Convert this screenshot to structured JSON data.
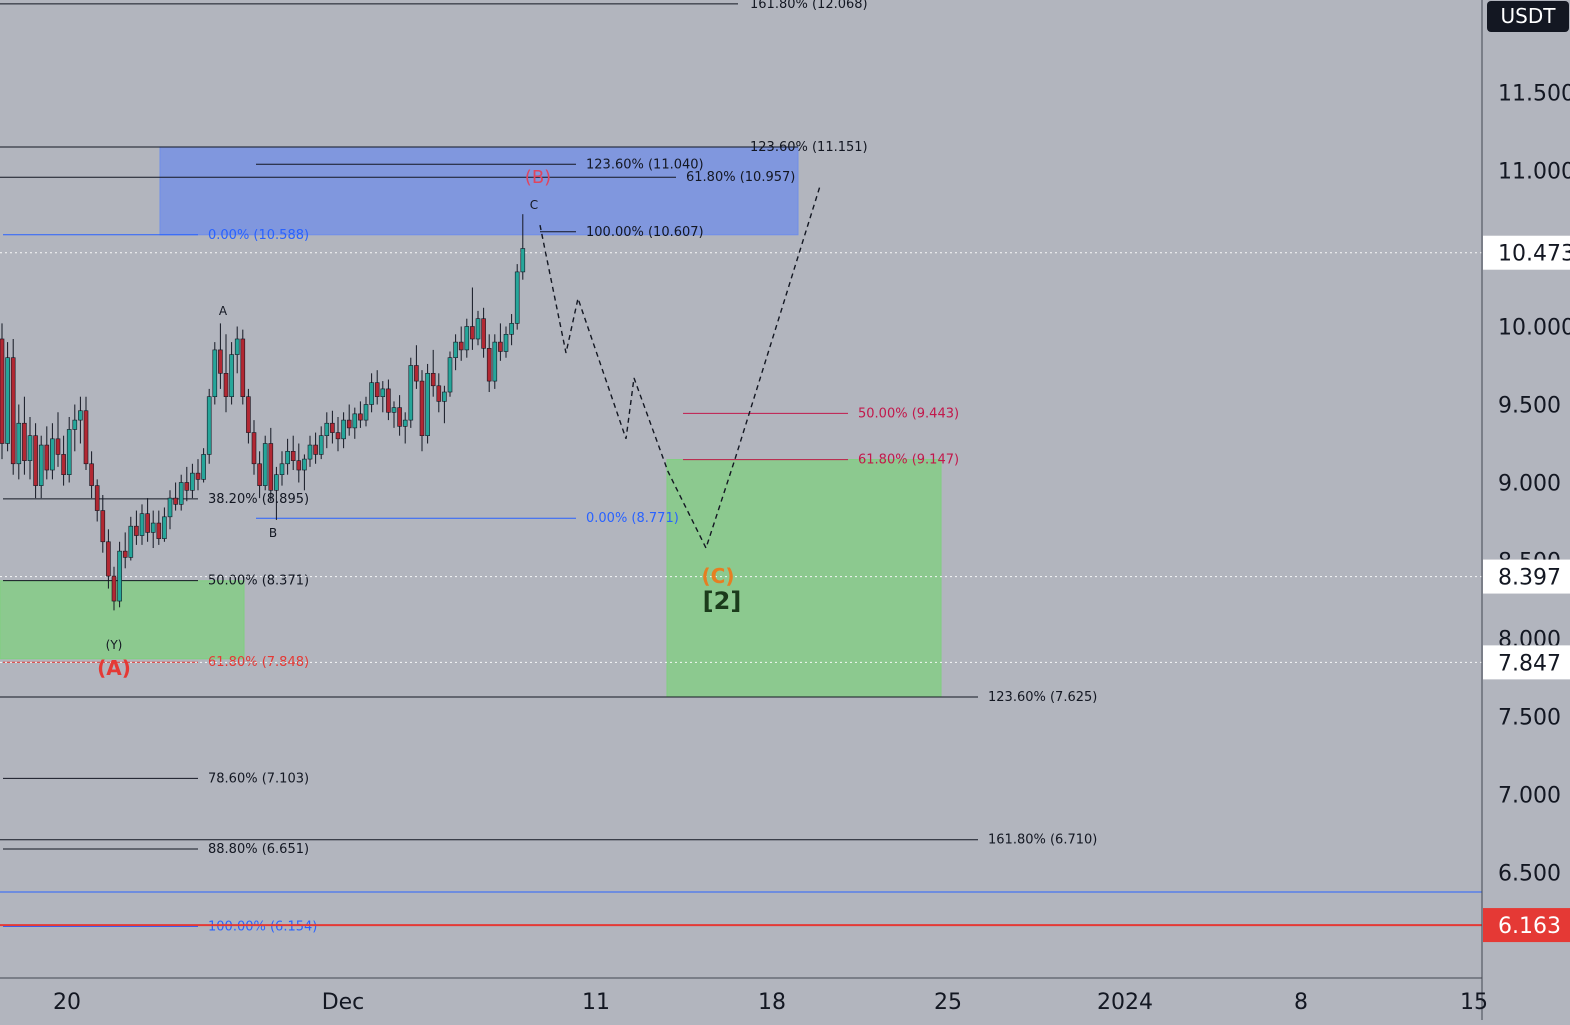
{
  "chart_data": {
    "type": "candlestick",
    "quote_currency": "USDT",
    "y_axis": {
      "ticks": [
        "11.500",
        "11.000",
        "10.000",
        "9.500",
        "9.000",
        "8.500",
        "8.000",
        "7.500",
        "7.000",
        "6.500"
      ],
      "tick_values": [
        11.5,
        11.0,
        10.0,
        9.5,
        9.0,
        8.5,
        8.0,
        7.5,
        7.0,
        6.5
      ],
      "range": [
        5.7,
        12.1
      ]
    },
    "x_axis": {
      "ticks": [
        "20",
        "Dec",
        "11",
        "18",
        "25",
        "2024",
        "8",
        "15"
      ]
    },
    "price_tags": [
      {
        "label": "10.473",
        "value": 10.473,
        "style": "light"
      },
      {
        "label": "8.397",
        "value": 8.397,
        "style": "light"
      },
      {
        "label": "7.847",
        "value": 7.847,
        "style": "light"
      },
      {
        "label": "6.163",
        "value": 6.163,
        "style": "red"
      }
    ],
    "fib_levels": [
      {
        "label": "161.80% (12.068)",
        "value": 12.068,
        "color": "#131722"
      },
      {
        "label": "123.60% (11.151)",
        "value": 11.151,
        "color": "#131722"
      },
      {
        "label": "123.60% (11.040)",
        "value": 11.04,
        "color": "#131722"
      },
      {
        "label": "61.80% (10.957)",
        "value": 10.957,
        "color": "#131722"
      },
      {
        "label": "0.00% (10.588)",
        "value": 10.588,
        "color": "#2962ff"
      },
      {
        "label": "100.00% (10.607)",
        "value": 10.607,
        "color": "#131722"
      },
      {
        "label": "50.00% (9.443)",
        "value": 9.443,
        "color": "#c2184b"
      },
      {
        "label": "61.80% (9.147)",
        "value": 9.147,
        "color": "#c2184b"
      },
      {
        "label": "38.20% (8.895)",
        "value": 8.895,
        "color": "#131722"
      },
      {
        "label": "0.00% (8.771)",
        "value": 8.771,
        "color": "#2962ff"
      },
      {
        "label": "50.00% (8.371)",
        "value": 8.371,
        "color": "#131722"
      },
      {
        "label": "61.80% (7.848)",
        "value": 7.848,
        "color": "#e53935"
      },
      {
        "label": "123.60% (7.625)",
        "value": 7.625,
        "color": "#131722"
      },
      {
        "label": "78.60% (7.103)",
        "value": 7.103,
        "color": "#131722"
      },
      {
        "label": "161.80% (6.710)",
        "value": 6.71,
        "color": "#131722"
      },
      {
        "label": "88.80% (6.651)",
        "value": 6.651,
        "color": "#131722"
      },
      {
        "label": "100.00% (6.154)",
        "value": 6.154,
        "color": "#2962ff"
      }
    ],
    "wave_labels": [
      {
        "label": "(B)",
        "color": "#e0455f"
      },
      {
        "label": "C",
        "color": "#131722"
      },
      {
        "label": "A",
        "color": "#131722"
      },
      {
        "label": "B",
        "color": "#131722"
      },
      {
        "label": "(Y)",
        "color": "#131722"
      },
      {
        "label": "(A)",
        "color": "#e53935"
      },
      {
        "label": "(C)",
        "color": "#e67e22"
      },
      {
        "label": "[2]",
        "color": "#1b3b1b"
      }
    ],
    "zones": [
      {
        "name": "resistance-zone",
        "color": "#6f8ee8",
        "range": [
          10.588,
          11.151
        ]
      },
      {
        "name": "target-zone",
        "color": "#7fd07f",
        "range": [
          7.625,
          9.147
        ]
      },
      {
        "name": "previous-zone",
        "color": "#7fd07f",
        "range": [
          7.87,
          8.37
        ]
      }
    ],
    "projection_path": [
      10.65,
      9.83,
      10.18,
      9.28,
      9.67,
      9.07,
      8.58,
      9.15,
      10.9
    ],
    "ohlc": [
      [
        9.92,
        10.02,
        9.15,
        9.25
      ],
      [
        9.25,
        9.9,
        9.2,
        9.8
      ],
      [
        9.8,
        9.92,
        9.05,
        9.12
      ],
      [
        9.12,
        9.5,
        9.02,
        9.38
      ],
      [
        9.38,
        9.55,
        9.05,
        9.14
      ],
      [
        9.14,
        9.42,
        9.02,
        9.3
      ],
      [
        9.3,
        9.38,
        8.9,
        8.98
      ],
      [
        8.98,
        9.3,
        8.9,
        9.24
      ],
      [
        9.24,
        9.36,
        9.02,
        9.08
      ],
      [
        9.08,
        9.38,
        9.02,
        9.28
      ],
      [
        9.28,
        9.45,
        9.1,
        9.18
      ],
      [
        9.18,
        9.3,
        8.98,
        9.05
      ],
      [
        9.05,
        9.42,
        9.0,
        9.34
      ],
      [
        9.34,
        9.5,
        9.2,
        9.4
      ],
      [
        9.4,
        9.55,
        9.25,
        9.46
      ],
      [
        9.46,
        9.55,
        9.08,
        9.12
      ],
      [
        9.12,
        9.2,
        8.9,
        8.98
      ],
      [
        8.98,
        9.02,
        8.75,
        8.82
      ],
      [
        8.82,
        8.92,
        8.55,
        8.62
      ],
      [
        8.62,
        8.7,
        8.32,
        8.4
      ],
      [
        8.4,
        8.46,
        8.18,
        8.24
      ],
      [
        8.24,
        8.62,
        8.2,
        8.56
      ],
      [
        8.56,
        8.68,
        8.45,
        8.52
      ],
      [
        8.52,
        8.78,
        8.5,
        8.72
      ],
      [
        8.72,
        8.82,
        8.6,
        8.66
      ],
      [
        8.66,
        8.86,
        8.6,
        8.8
      ],
      [
        8.8,
        8.9,
        8.62,
        8.68
      ],
      [
        8.68,
        8.82,
        8.58,
        8.74
      ],
      [
        8.74,
        8.82,
        8.6,
        8.64
      ],
      [
        8.64,
        8.84,
        8.62,
        8.78
      ],
      [
        8.78,
        8.95,
        8.7,
        8.9
      ],
      [
        8.9,
        9.0,
        8.82,
        8.86
      ],
      [
        8.86,
        9.05,
        8.82,
        9.0
      ],
      [
        9.0,
        9.1,
        8.88,
        8.95
      ],
      [
        8.95,
        9.12,
        8.9,
        9.06
      ],
      [
        9.06,
        9.15,
        8.95,
        9.02
      ],
      [
        9.02,
        9.22,
        9.0,
        9.18
      ],
      [
        9.18,
        9.6,
        9.12,
        9.55
      ],
      [
        9.55,
        9.9,
        9.5,
        9.85
      ],
      [
        9.85,
        10.02,
        9.6,
        9.7
      ],
      [
        9.7,
        9.95,
        9.45,
        9.55
      ],
      [
        9.55,
        9.9,
        9.5,
        9.82
      ],
      [
        9.82,
        10.0,
        9.7,
        9.92
      ],
      [
        9.92,
        9.98,
        9.5,
        9.55
      ],
      [
        9.55,
        9.6,
        9.25,
        9.32
      ],
      [
        9.32,
        9.4,
        9.05,
        9.12
      ],
      [
        9.12,
        9.2,
        8.9,
        8.98
      ],
      [
        8.98,
        9.3,
        8.95,
        9.25
      ],
      [
        9.25,
        9.35,
        8.88,
        8.95
      ],
      [
        8.95,
        9.1,
        8.76,
        9.05
      ],
      [
        9.05,
        9.2,
        8.98,
        9.12
      ],
      [
        9.12,
        9.28,
        9.05,
        9.2
      ],
      [
        9.2,
        9.3,
        9.08,
        9.14
      ],
      [
        9.14,
        9.25,
        9.0,
        9.08
      ],
      [
        9.08,
        9.18,
        8.95,
        9.15
      ],
      [
        9.15,
        9.3,
        9.1,
        9.24
      ],
      [
        9.24,
        9.32,
        9.12,
        9.18
      ],
      [
        9.18,
        9.36,
        9.15,
        9.3
      ],
      [
        9.3,
        9.45,
        9.22,
        9.38
      ],
      [
        9.38,
        9.46,
        9.25,
        9.32
      ],
      [
        9.32,
        9.42,
        9.2,
        9.28
      ],
      [
        9.28,
        9.45,
        9.22,
        9.4
      ],
      [
        9.4,
        9.5,
        9.3,
        9.35
      ],
      [
        9.35,
        9.48,
        9.28,
        9.44
      ],
      [
        9.44,
        9.52,
        9.35,
        9.4
      ],
      [
        9.4,
        9.55,
        9.36,
        9.5
      ],
      [
        9.5,
        9.7,
        9.45,
        9.64
      ],
      [
        9.64,
        9.72,
        9.5,
        9.55
      ],
      [
        9.55,
        9.65,
        9.45,
        9.6
      ],
      [
        9.6,
        9.66,
        9.4,
        9.45
      ],
      [
        9.45,
        9.52,
        9.35,
        9.48
      ],
      [
        9.48,
        9.56,
        9.3,
        9.36
      ],
      [
        9.36,
        9.45,
        9.25,
        9.4
      ],
      [
        9.4,
        9.8,
        9.35,
        9.75
      ],
      [
        9.75,
        9.88,
        9.6,
        9.65
      ],
      [
        9.65,
        9.72,
        9.2,
        9.3
      ],
      [
        9.3,
        9.76,
        9.25,
        9.7
      ],
      [
        9.7,
        9.85,
        9.55,
        9.62
      ],
      [
        9.62,
        9.7,
        9.45,
        9.52
      ],
      [
        9.52,
        9.62,
        9.38,
        9.58
      ],
      [
        9.58,
        9.84,
        9.55,
        9.8
      ],
      [
        9.8,
        9.95,
        9.72,
        9.9
      ],
      [
        9.9,
        10.0,
        9.78,
        9.85
      ],
      [
        9.85,
        10.05,
        9.8,
        10.0
      ],
      [
        10.0,
        10.25,
        9.85,
        9.92
      ],
      [
        9.92,
        10.1,
        9.88,
        10.05
      ],
      [
        10.05,
        10.12,
        9.8,
        9.86
      ],
      [
        9.86,
        9.95,
        9.58,
        9.65
      ],
      [
        9.65,
        9.95,
        9.6,
        9.9
      ],
      [
        9.9,
        10.02,
        9.78,
        9.84
      ],
      [
        9.84,
        10.0,
        9.8,
        9.95
      ],
      [
        9.95,
        10.08,
        9.88,
        10.02
      ],
      [
        10.02,
        10.4,
        9.98,
        10.35
      ],
      [
        10.35,
        10.72,
        10.3,
        10.5
      ]
    ]
  }
}
